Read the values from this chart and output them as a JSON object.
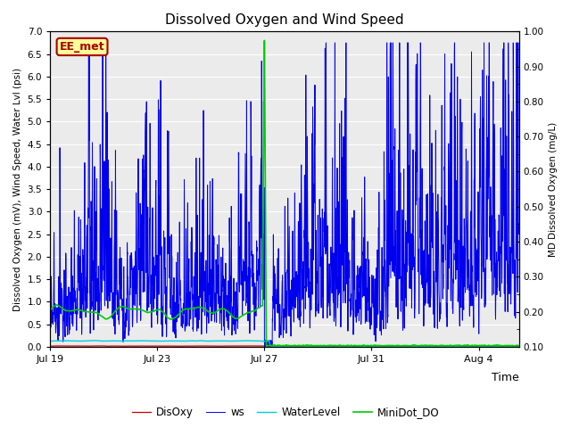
{
  "title": "Dissolved Oxygen and Wind Speed",
  "ylabel_left": "Dissolved Oxygen (mV), Wind Speed, Water Lvl (psi)",
  "ylabel_right": "MD Dissolved Oxygen (mg/L)",
  "xlabel": "Time",
  "ylim_left": [
    0.0,
    7.0
  ],
  "ylim_right": [
    0.1,
    1.0
  ],
  "yticks_left": [
    0.0,
    0.5,
    1.0,
    1.5,
    2.0,
    2.5,
    3.0,
    3.5,
    4.0,
    4.5,
    5.0,
    5.5,
    6.0,
    6.5,
    7.0
  ],
  "yticks_right": [
    0.1,
    0.2,
    0.3,
    0.4,
    0.5,
    0.6,
    0.7,
    0.8,
    0.9,
    1.0
  ],
  "xtick_labels": [
    "Jul 19",
    "Jul 23",
    "Jul 27",
    "Jul 31",
    "Aug 4"
  ],
  "xtick_positions": [
    0,
    4,
    8,
    12,
    16
  ],
  "xlim": [
    0,
    17.5
  ],
  "annotation_label": "EE_met",
  "legend_labels": [
    "DisOxy",
    "ws",
    "WaterLevel",
    "MiniDot_DO"
  ],
  "line_DisOxy_color": "#CC0000",
  "line_ws_color": "#0000EE",
  "line_WaterLevel_color": "#00CCDD",
  "line_MiniDot_DO_color": "#00CC00",
  "background_color": "#EBEBEB",
  "grid_color": "#FFFFFF",
  "fig_width": 6.4,
  "fig_height": 4.8,
  "dpi": 100
}
